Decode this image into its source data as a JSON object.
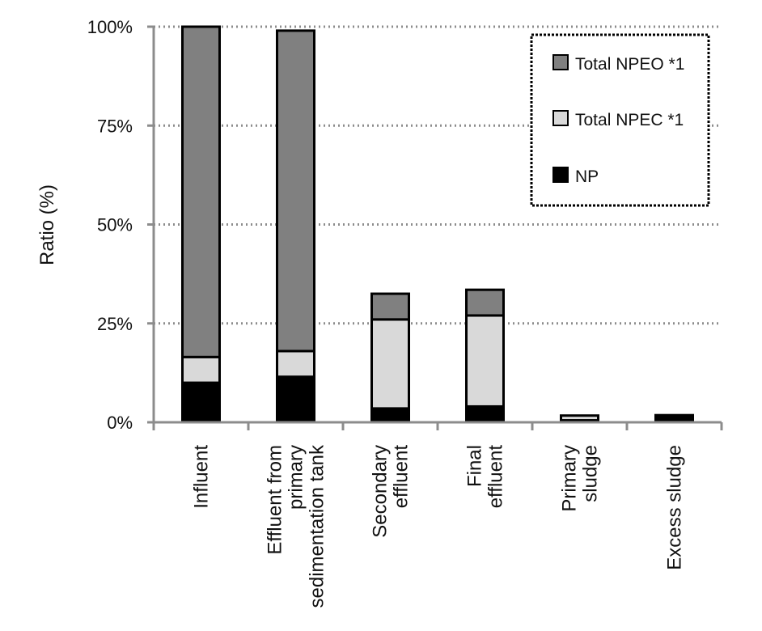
{
  "chart_data": {
    "type": "bar",
    "stacked": true,
    "ylabel": "Ratio (%)",
    "ylim": [
      0,
      100
    ],
    "yticks": [
      "0%",
      "25%",
      "50%",
      "75%",
      "100%"
    ],
    "grid": true,
    "legend_position": "top-right",
    "categories": [
      [
        "Influent"
      ],
      [
        "Effluent from",
        "primary",
        "sedimentation tank"
      ],
      [
        "Secondary",
        "effluent"
      ],
      [
        "Final",
        "effluent"
      ],
      [
        "Primary",
        "sludge"
      ],
      [
        "Excess sludge"
      ]
    ],
    "series": [
      {
        "name": "NP",
        "color": "#000000",
        "values": [
          10,
          11.5,
          3.5,
          4,
          0.5,
          1.8
        ]
      },
      {
        "name": "Total NPEC *1",
        "color": "#d9d9d9",
        "values": [
          6.5,
          6.5,
          22.5,
          23,
          1.2,
          0
        ]
      },
      {
        "name": "Total NPEO *1",
        "color": "#808080",
        "values": [
          83.5,
          81,
          6.5,
          6.5,
          0,
          0
        ]
      }
    ],
    "legend": [
      "Total NPEO *1",
      "Total NPEC *1",
      "NP"
    ]
  }
}
